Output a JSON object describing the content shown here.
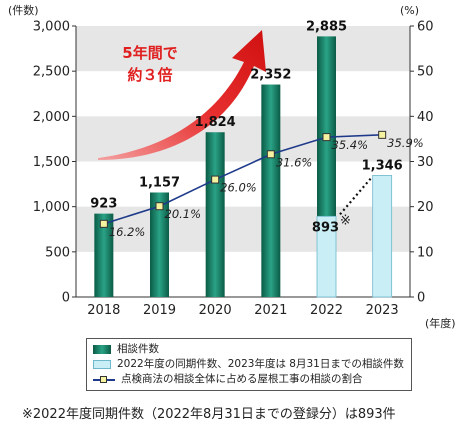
{
  "chart_data": {
    "type": "bar+line",
    "categories": [
      "2018",
      "2019",
      "2020",
      "2021",
      "2022",
      "2023"
    ],
    "series": [
      {
        "name": "相談件数",
        "type": "bar",
        "values": [
          923,
          1157,
          1824,
          2352,
          2885,
          null
        ],
        "labels": [
          "923",
          "1,157",
          "1,824",
          "2,352",
          "2,885",
          ""
        ]
      },
      {
        "name": "2022年度の同期件数、2023年度は 8月31日までの相談件数",
        "type": "bar",
        "values": [
          null,
          null,
          null,
          null,
          893,
          1346
        ],
        "labels": [
          "",
          "",
          "",
          "",
          "893",
          "1,346"
        ]
      },
      {
        "name": "点検商法の相談全体に占める屋根工事の相談の割合",
        "type": "line",
        "axis": "right",
        "values": [
          16.2,
          20.1,
          26.0,
          31.6,
          35.4,
          35.9
        ],
        "labels": [
          "16.2%",
          "20.1%",
          "26.0%",
          "31.6%",
          "35.4%",
          "35.9%"
        ]
      }
    ],
    "ylim": [
      0,
      3000
    ],
    "y2lim": [
      0,
      60
    ],
    "yticks": [
      "0",
      "500",
      "1,000",
      "1,500",
      "2,000",
      "2,500",
      "3,000"
    ],
    "yticks_values": [
      0,
      500,
      1000,
      1500,
      2000,
      2500,
      3000
    ],
    "y2ticks": [
      "0",
      "10",
      "20",
      "30",
      "40",
      "50",
      "60"
    ],
    "y2ticks_values": [
      0,
      10,
      20,
      30,
      40,
      50,
      60
    ],
    "ylabel": "(件数)",
    "y2label": "(%)",
    "xlabel": "(年度)",
    "annotation": "5年間で\n約３倍",
    "asterisk": "※",
    "grid": "alternating bands",
    "legend_placement": "bottom"
  },
  "legend": {
    "items": [
      {
        "label": "相談件数",
        "swatch": "green-bar"
      },
      {
        "label": "2022年度の同期件数、2023年度は 8月31日までの相談件数",
        "swatch": "light-bar"
      },
      {
        "label": "点検商法の相談全体に占める屋根工事の相談の割合",
        "swatch": "line-marker"
      }
    ]
  },
  "footnote": "※2022年度同期件数（2022年8月31日までの登録分）は893件",
  "colors": {
    "bar_dark": "#0b5b46",
    "bar_mid": "#2aa386",
    "bar_light": "#c9eef6",
    "bar_light_border": "#6fb8cc",
    "line": "#1f3a8a",
    "marker_fill": "#f5f2a0",
    "band": "#e6e6e6",
    "arrow": "#e02020"
  }
}
